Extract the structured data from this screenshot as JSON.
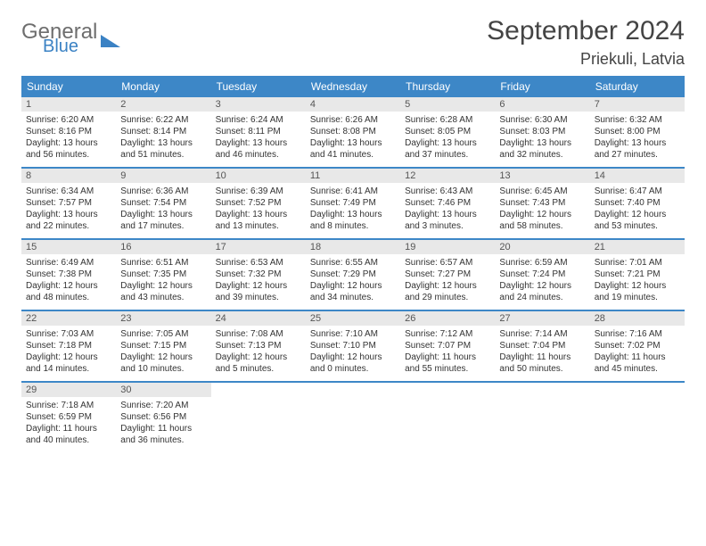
{
  "logo": {
    "general": "General",
    "blue": "Blue"
  },
  "title": "September 2024",
  "location": "Priekuli, Latvia",
  "colors": {
    "header_bg": "#3d87c7",
    "header_text": "#ffffff",
    "daynum_bg": "#e8e8e8",
    "row_border": "#3d87c7",
    "text": "#333333"
  },
  "day_headers": [
    "Sunday",
    "Monday",
    "Tuesday",
    "Wednesday",
    "Thursday",
    "Friday",
    "Saturday"
  ],
  "weeks": [
    [
      {
        "n": "1",
        "sr": "Sunrise: 6:20 AM",
        "ss": "Sunset: 8:16 PM",
        "dl": "Daylight: 13 hours and 56 minutes."
      },
      {
        "n": "2",
        "sr": "Sunrise: 6:22 AM",
        "ss": "Sunset: 8:14 PM",
        "dl": "Daylight: 13 hours and 51 minutes."
      },
      {
        "n": "3",
        "sr": "Sunrise: 6:24 AM",
        "ss": "Sunset: 8:11 PM",
        "dl": "Daylight: 13 hours and 46 minutes."
      },
      {
        "n": "4",
        "sr": "Sunrise: 6:26 AM",
        "ss": "Sunset: 8:08 PM",
        "dl": "Daylight: 13 hours and 41 minutes."
      },
      {
        "n": "5",
        "sr": "Sunrise: 6:28 AM",
        "ss": "Sunset: 8:05 PM",
        "dl": "Daylight: 13 hours and 37 minutes."
      },
      {
        "n": "6",
        "sr": "Sunrise: 6:30 AM",
        "ss": "Sunset: 8:03 PM",
        "dl": "Daylight: 13 hours and 32 minutes."
      },
      {
        "n": "7",
        "sr": "Sunrise: 6:32 AM",
        "ss": "Sunset: 8:00 PM",
        "dl": "Daylight: 13 hours and 27 minutes."
      }
    ],
    [
      {
        "n": "8",
        "sr": "Sunrise: 6:34 AM",
        "ss": "Sunset: 7:57 PM",
        "dl": "Daylight: 13 hours and 22 minutes."
      },
      {
        "n": "9",
        "sr": "Sunrise: 6:36 AM",
        "ss": "Sunset: 7:54 PM",
        "dl": "Daylight: 13 hours and 17 minutes."
      },
      {
        "n": "10",
        "sr": "Sunrise: 6:39 AM",
        "ss": "Sunset: 7:52 PM",
        "dl": "Daylight: 13 hours and 13 minutes."
      },
      {
        "n": "11",
        "sr": "Sunrise: 6:41 AM",
        "ss": "Sunset: 7:49 PM",
        "dl": "Daylight: 13 hours and 8 minutes."
      },
      {
        "n": "12",
        "sr": "Sunrise: 6:43 AM",
        "ss": "Sunset: 7:46 PM",
        "dl": "Daylight: 13 hours and 3 minutes."
      },
      {
        "n": "13",
        "sr": "Sunrise: 6:45 AM",
        "ss": "Sunset: 7:43 PM",
        "dl": "Daylight: 12 hours and 58 minutes."
      },
      {
        "n": "14",
        "sr": "Sunrise: 6:47 AM",
        "ss": "Sunset: 7:40 PM",
        "dl": "Daylight: 12 hours and 53 minutes."
      }
    ],
    [
      {
        "n": "15",
        "sr": "Sunrise: 6:49 AM",
        "ss": "Sunset: 7:38 PM",
        "dl": "Daylight: 12 hours and 48 minutes."
      },
      {
        "n": "16",
        "sr": "Sunrise: 6:51 AM",
        "ss": "Sunset: 7:35 PM",
        "dl": "Daylight: 12 hours and 43 minutes."
      },
      {
        "n": "17",
        "sr": "Sunrise: 6:53 AM",
        "ss": "Sunset: 7:32 PM",
        "dl": "Daylight: 12 hours and 39 minutes."
      },
      {
        "n": "18",
        "sr": "Sunrise: 6:55 AM",
        "ss": "Sunset: 7:29 PM",
        "dl": "Daylight: 12 hours and 34 minutes."
      },
      {
        "n": "19",
        "sr": "Sunrise: 6:57 AM",
        "ss": "Sunset: 7:27 PM",
        "dl": "Daylight: 12 hours and 29 minutes."
      },
      {
        "n": "20",
        "sr": "Sunrise: 6:59 AM",
        "ss": "Sunset: 7:24 PM",
        "dl": "Daylight: 12 hours and 24 minutes."
      },
      {
        "n": "21",
        "sr": "Sunrise: 7:01 AM",
        "ss": "Sunset: 7:21 PM",
        "dl": "Daylight: 12 hours and 19 minutes."
      }
    ],
    [
      {
        "n": "22",
        "sr": "Sunrise: 7:03 AM",
        "ss": "Sunset: 7:18 PM",
        "dl": "Daylight: 12 hours and 14 minutes."
      },
      {
        "n": "23",
        "sr": "Sunrise: 7:05 AM",
        "ss": "Sunset: 7:15 PM",
        "dl": "Daylight: 12 hours and 10 minutes."
      },
      {
        "n": "24",
        "sr": "Sunrise: 7:08 AM",
        "ss": "Sunset: 7:13 PM",
        "dl": "Daylight: 12 hours and 5 minutes."
      },
      {
        "n": "25",
        "sr": "Sunrise: 7:10 AM",
        "ss": "Sunset: 7:10 PM",
        "dl": "Daylight: 12 hours and 0 minutes."
      },
      {
        "n": "26",
        "sr": "Sunrise: 7:12 AM",
        "ss": "Sunset: 7:07 PM",
        "dl": "Daylight: 11 hours and 55 minutes."
      },
      {
        "n": "27",
        "sr": "Sunrise: 7:14 AM",
        "ss": "Sunset: 7:04 PM",
        "dl": "Daylight: 11 hours and 50 minutes."
      },
      {
        "n": "28",
        "sr": "Sunrise: 7:16 AM",
        "ss": "Sunset: 7:02 PM",
        "dl": "Daylight: 11 hours and 45 minutes."
      }
    ],
    [
      {
        "n": "29",
        "sr": "Sunrise: 7:18 AM",
        "ss": "Sunset: 6:59 PM",
        "dl": "Daylight: 11 hours and 40 minutes."
      },
      {
        "n": "30",
        "sr": "Sunrise: 7:20 AM",
        "ss": "Sunset: 6:56 PM",
        "dl": "Daylight: 11 hours and 36 minutes."
      },
      null,
      null,
      null,
      null,
      null
    ]
  ]
}
